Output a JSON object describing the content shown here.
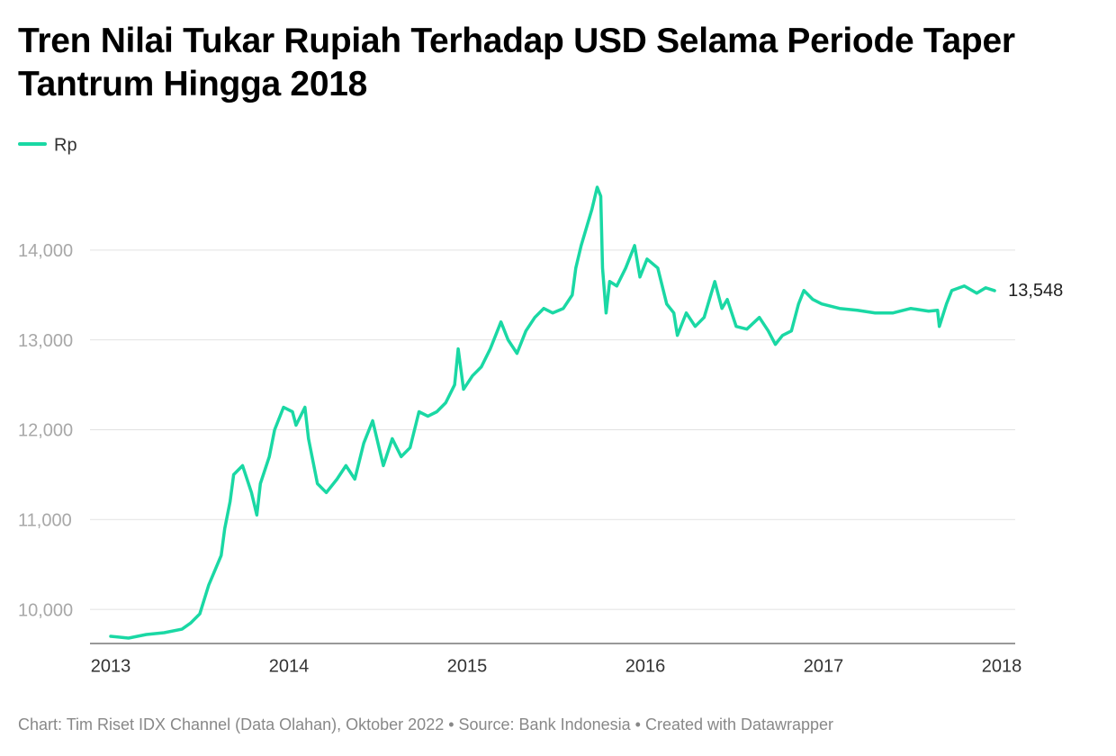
{
  "chart_data": {
    "type": "line",
    "title": "Tren Nilai Tukar Rupiah Terhadap USD Selama Periode Taper Tantrum Hingga 2018",
    "source": "Chart: Tim Riset IDX Channel (Data Olahan), Oktober 2022 • Source: Bank Indonesia • Created with Datawrapper",
    "x": [
      2013.0,
      2013.1,
      2013.2,
      2013.3,
      2013.4,
      2013.45,
      2013.5,
      2013.55,
      2013.62,
      2013.64,
      2013.67,
      2013.69,
      2013.74,
      2013.79,
      2013.82,
      2013.84,
      2013.89,
      2013.92,
      2013.97,
      2014.02,
      2014.04,
      2014.09,
      2014.11,
      2014.16,
      2014.21,
      2014.27,
      2014.32,
      2014.37,
      2014.42,
      2014.47,
      2014.53,
      2014.58,
      2014.63,
      2014.68,
      2014.73,
      2014.78,
      2014.83,
      2014.88,
      2014.93,
      2014.95,
      2014.98,
      2015.03,
      2015.08,
      2015.13,
      2015.19,
      2015.23,
      2015.28,
      2015.33,
      2015.38,
      2015.43,
      2015.48,
      2015.54,
      2015.59,
      2015.61,
      2015.64,
      2015.67,
      2015.7,
      2015.73,
      2015.75,
      2015.76,
      2015.78,
      2015.8,
      2015.84,
      2015.89,
      2015.94,
      2015.97,
      2016.01,
      2016.07,
      2016.12,
      2016.16,
      2016.18,
      2016.23,
      2016.28,
      2016.33,
      2016.39,
      2016.43,
      2016.46,
      2016.51,
      2016.57,
      2016.64,
      2016.69,
      2016.73,
      2016.77,
      2016.82,
      2016.86,
      2016.89,
      2016.94,
      2016.99,
      2017.09,
      2017.19,
      2017.29,
      2017.39,
      2017.49,
      2017.59,
      2017.64,
      2017.65,
      2017.69,
      2017.72,
      2017.79,
      2017.86,
      2017.91,
      2017.96
    ],
    "series": [
      {
        "name": "Rp",
        "color": "#1ad8a4",
        "values": [
          9700,
          9680,
          9720,
          9740,
          9780,
          9850,
          9950,
          10270,
          10600,
          10900,
          11200,
          11500,
          11600,
          11300,
          11050,
          11400,
          11700,
          12000,
          12250,
          12200,
          12050,
          12250,
          11900,
          11400,
          11300,
          11450,
          11600,
          11450,
          11850,
          12100,
          11600,
          11900,
          11700,
          11800,
          12200,
          12150,
          12200,
          12300,
          12500,
          12900,
          12450,
          12600,
          12700,
          12900,
          13200,
          13000,
          12850,
          13100,
          13250,
          13350,
          13300,
          13350,
          13500,
          13800,
          14050,
          14250,
          14450,
          14700,
          14600,
          13800,
          13300,
          13650,
          13600,
          13800,
          14050,
          13700,
          13900,
          13800,
          13400,
          13300,
          13050,
          13300,
          13150,
          13250,
          13650,
          13350,
          13450,
          13150,
          13120,
          13250,
          13100,
          12950,
          13050,
          13100,
          13400,
          13550,
          13450,
          13400,
          13350,
          13330,
          13300,
          13300,
          13350,
          13320,
          13330,
          13150,
          13400,
          13550,
          13600,
          13520,
          13580,
          13548
        ],
        "value_labels": [
          null,
          null,
          null,
          null,
          null,
          null,
          null,
          null,
          null,
          null,
          null,
          null,
          null,
          null,
          null,
          null,
          null,
          null,
          null,
          null,
          null,
          null,
          null,
          null,
          null,
          null,
          null,
          null,
          null,
          null,
          null,
          null,
          null,
          null,
          null,
          null,
          null,
          null,
          null,
          null,
          null,
          null,
          null,
          null,
          null,
          null,
          null,
          null,
          null,
          null,
          null,
          null,
          null,
          null,
          null,
          null,
          null,
          null,
          null,
          null,
          null,
          null,
          null,
          null,
          null,
          null,
          null,
          null,
          null,
          null,
          null,
          null,
          null,
          null,
          null,
          null,
          null,
          null,
          null,
          null,
          null,
          null,
          null,
          null,
          null,
          null,
          null,
          null,
          null,
          null,
          null,
          null,
          null,
          null,
          null,
          null,
          null,
          null,
          null,
          null,
          null,
          "13,548"
        ]
      }
    ],
    "xlim": [
      2013,
      2018
    ],
    "xticks": [
      2013,
      2014,
      2015,
      2016,
      2017,
      2018
    ],
    "ylim": [
      9620,
      14800
    ],
    "yticks": [
      {
        "value": 10000,
        "label": "10,000"
      },
      {
        "value": 11000,
        "label": "11,000"
      },
      {
        "value": 12000,
        "label": "12,000"
      },
      {
        "value": 13000,
        "label": "13,000"
      },
      {
        "value": 14000,
        "label": "14,000"
      }
    ],
    "grid": true
  }
}
